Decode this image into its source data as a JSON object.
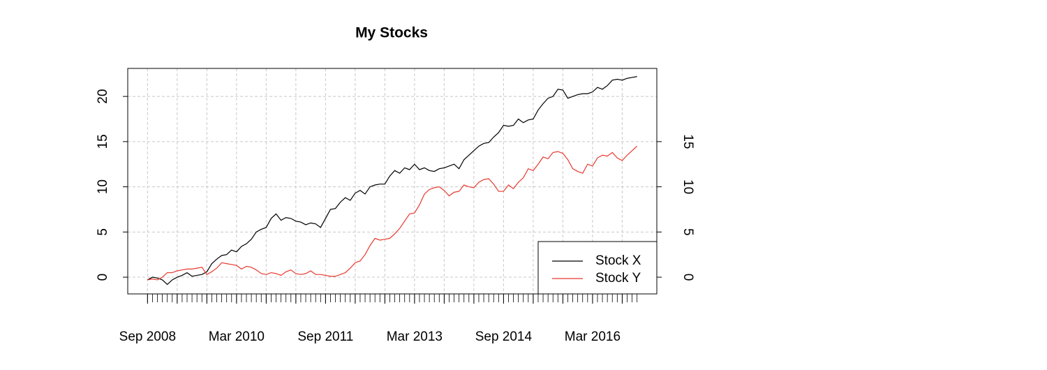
{
  "chart_data": {
    "type": "line",
    "title": "My Stocks",
    "x": [
      "2008-09",
      "2008-10",
      "2008-11",
      "2008-12",
      "2009-01",
      "2009-02",
      "2009-03",
      "2009-04",
      "2009-05",
      "2009-06",
      "2009-07",
      "2009-08",
      "2009-09",
      "2009-10",
      "2009-11",
      "2009-12",
      "2010-01",
      "2010-02",
      "2010-03",
      "2010-04",
      "2010-05",
      "2010-06",
      "2010-07",
      "2010-08",
      "2010-09",
      "2010-10",
      "2010-11",
      "2010-12",
      "2011-01",
      "2011-02",
      "2011-03",
      "2011-04",
      "2011-05",
      "2011-06",
      "2011-07",
      "2011-08",
      "2011-09",
      "2011-10",
      "2011-11",
      "2011-12",
      "2012-01",
      "2012-02",
      "2012-03",
      "2012-04",
      "2012-05",
      "2012-06",
      "2012-07",
      "2012-08",
      "2012-09",
      "2012-10",
      "2012-11",
      "2012-12",
      "2013-01",
      "2013-02",
      "2013-03",
      "2013-04",
      "2013-05",
      "2013-06",
      "2013-07",
      "2013-08",
      "2013-09",
      "2013-10",
      "2013-11",
      "2013-12",
      "2014-01",
      "2014-02",
      "2014-03",
      "2014-04",
      "2014-05",
      "2014-06",
      "2014-07",
      "2014-08",
      "2014-09",
      "2014-10",
      "2014-11",
      "2014-12",
      "2015-01",
      "2015-02",
      "2015-03",
      "2015-04",
      "2015-05",
      "2015-06",
      "2015-07",
      "2015-08",
      "2015-09",
      "2015-10",
      "2015-11",
      "2015-12",
      "2016-01",
      "2016-02",
      "2016-03",
      "2016-04",
      "2016-05",
      "2016-06",
      "2016-07",
      "2016-08",
      "2016-09",
      "2016-10",
      "2016-11",
      "2016-12"
    ],
    "series": [
      {
        "name": "Stock X",
        "color": "#000000",
        "values": [
          -0.3,
          0.0,
          -0.1,
          -0.3,
          -0.8,
          -0.3,
          0.0,
          0.2,
          0.5,
          0.1,
          0.2,
          0.3,
          0.6,
          1.5,
          2.0,
          2.4,
          2.5,
          3.0,
          2.8,
          3.4,
          3.7,
          4.2,
          5.0,
          5.3,
          5.5,
          6.5,
          7.0,
          6.3,
          6.6,
          6.5,
          6.2,
          6.1,
          5.8,
          6.0,
          5.9,
          5.5,
          6.5,
          7.5,
          7.6,
          8.3,
          8.8,
          8.5,
          9.3,
          9.6,
          9.2,
          10.0,
          10.2,
          10.3,
          10.3,
          11.2,
          11.8,
          11.5,
          12.1,
          11.9,
          12.5,
          11.9,
          12.1,
          11.8,
          11.7,
          12.0,
          12.1,
          12.3,
          12.5,
          12.0,
          13.0,
          13.5,
          14.0,
          14.5,
          14.8,
          14.9,
          15.5,
          16.0,
          16.8,
          16.7,
          16.8,
          17.5,
          17.1,
          17.4,
          17.5,
          18.5,
          19.2,
          19.8,
          20.0,
          20.8,
          20.7,
          19.8,
          20.0,
          20.2,
          20.3,
          20.3,
          20.5,
          21.0,
          20.8,
          21.2,
          21.8,
          21.9,
          21.8,
          22.0,
          22.1,
          22.2
        ]
      },
      {
        "name": "Stock Y",
        "color": "#e8392f",
        "axis": "y2",
        "values": [
          -0.3,
          -0.2,
          -0.3,
          0.0,
          0.5,
          0.5,
          0.7,
          0.8,
          0.9,
          0.9,
          1.0,
          1.1,
          0.3,
          0.6,
          1.0,
          1.6,
          1.5,
          1.4,
          1.3,
          0.9,
          1.2,
          1.1,
          0.8,
          0.4,
          0.3,
          0.5,
          0.4,
          0.2,
          0.6,
          0.8,
          0.4,
          0.3,
          0.4,
          0.7,
          0.3,
          0.3,
          0.2,
          0.1,
          0.1,
          0.3,
          0.5,
          1.0,
          1.6,
          1.8,
          2.5,
          3.5,
          4.3,
          4.1,
          4.2,
          4.3,
          4.8,
          5.4,
          6.2,
          7.0,
          7.1,
          8.0,
          9.2,
          9.7,
          9.9,
          10.0,
          9.6,
          9.0,
          9.4,
          9.5,
          10.2,
          10.0,
          9.9,
          10.5,
          10.8,
          10.9,
          10.3,
          9.5,
          9.5,
          10.2,
          9.8,
          10.5,
          11.0,
          12.0,
          11.8,
          12.5,
          13.3,
          13.1,
          13.8,
          13.9,
          13.7,
          13.0,
          12.0,
          11.7,
          11.5,
          12.5,
          12.3,
          13.2,
          13.5,
          13.4,
          13.8,
          13.2,
          12.9,
          13.5,
          14.0,
          14.5
        ]
      }
    ],
    "xlim": [
      "2008-05",
      "2017-04"
    ],
    "xticks": [
      {
        "value": "2008-09",
        "label": "Sep 2008"
      },
      {
        "value": "2010-03",
        "label": "Mar 2010"
      },
      {
        "value": "2011-09",
        "label": "Sep 2011"
      },
      {
        "value": "2013-03",
        "label": "Mar 2013"
      },
      {
        "value": "2014-09",
        "label": "Sep 2014"
      },
      {
        "value": "2016-03",
        "label": "Mar 2016"
      }
    ],
    "xgrid": [
      "2008-09",
      "2009-03",
      "2009-09",
      "2010-03",
      "2010-09",
      "2011-03",
      "2011-09",
      "2012-03",
      "2012-09",
      "2013-03",
      "2013-09",
      "2014-03",
      "2014-09",
      "2015-03",
      "2015-09",
      "2016-03",
      "2016-09"
    ],
    "ylim": [
      -1.85,
      23.1
    ],
    "yticks": [
      0,
      5,
      10,
      15,
      20
    ],
    "y2lim": [
      -1.85,
      23.1
    ],
    "y2ticks": [
      0,
      5,
      10,
      15
    ],
    "grid": true,
    "legend": "bottomright"
  }
}
